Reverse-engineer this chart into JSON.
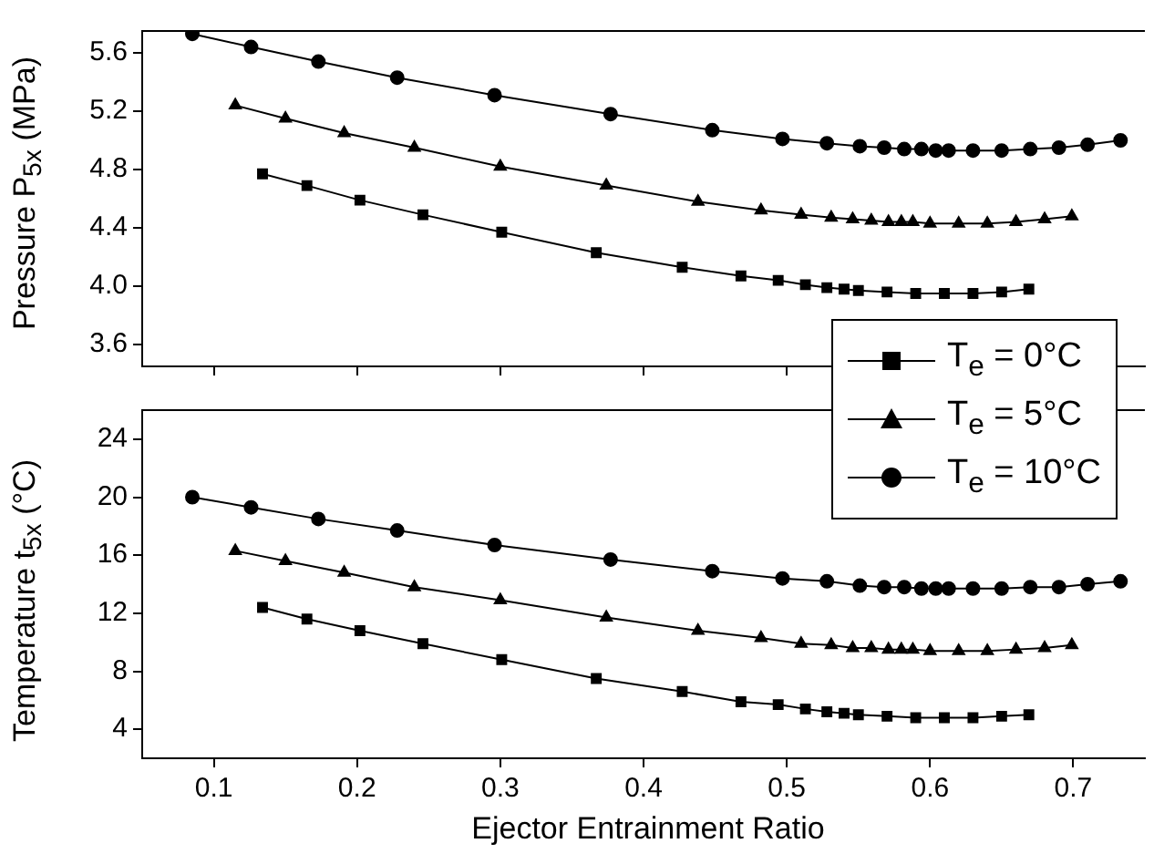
{
  "chart_data": [
    {
      "type": "line",
      "ylabel": "Pressure  P$_{5x}$ (MPa)",
      "xlim": [
        0.05,
        0.75
      ],
      "xticks": [
        0.1,
        0.2,
        0.3,
        0.4,
        0.5,
        0.6,
        0.7
      ],
      "ylim": [
        3.45,
        5.75
      ],
      "yticks": [
        {
          "value": 3.6,
          "label": "3.6"
        },
        {
          "value": 4,
          "label": "4.0"
        },
        {
          "value": 4.4,
          "label": "4.4"
        },
        {
          "value": 4.8,
          "label": "4.8"
        },
        {
          "value": 5.2,
          "label": "5.2"
        },
        {
          "value": 5.6,
          "label": "5.6"
        }
      ],
      "tick_labels": "y",
      "grid": false,
      "series": [
        {
          "color": "#000000",
          "marker": "square",
          "x": [
            0.134,
            0.165,
            0.202,
            0.246,
            0.301,
            0.367,
            0.427,
            0.468,
            0.494,
            0.513,
            0.528,
            0.54,
            0.55,
            0.57,
            0.59,
            0.61,
            0.63,
            0.65,
            0.669
          ],
          "values": [
            4.77,
            4.69,
            4.59,
            4.49,
            4.37,
            4.23,
            4.13,
            4.07,
            4.04,
            4.01,
            3.99,
            3.98,
            3.97,
            3.96,
            3.95,
            3.95,
            3.95,
            3.96,
            3.98
          ]
        },
        {
          "color": "#000000",
          "marker": "triangle",
          "x": [
            0.115,
            0.15,
            0.191,
            0.24,
            0.3,
            0.374,
            0.438,
            0.482,
            0.51,
            0.531,
            0.546,
            0.559,
            0.571,
            0.58,
            0.588,
            0.6,
            0.62,
            0.64,
            0.66,
            0.68,
            0.699
          ],
          "values": [
            5.24,
            5.15,
            5.05,
            4.95,
            4.82,
            4.69,
            4.58,
            4.52,
            4.49,
            4.47,
            4.46,
            4.45,
            4.44,
            4.44,
            4.44,
            4.43,
            4.43,
            4.43,
            4.44,
            4.46,
            4.48
          ]
        },
        {
          "color": "#000000",
          "marker": "circle",
          "x": [
            0.085,
            0.126,
            0.173,
            0.228,
            0.296,
            0.377,
            0.448,
            0.497,
            0.528,
            0.551,
            0.568,
            0.582,
            0.594,
            0.604,
            0.613,
            0.63,
            0.65,
            0.67,
            0.69,
            0.71,
            0.733
          ],
          "values": [
            5.73,
            5.64,
            5.54,
            5.43,
            5.31,
            5.18,
            5.07,
            5.01,
            4.98,
            4.96,
            4.95,
            4.94,
            4.94,
            4.93,
            4.93,
            4.93,
            4.93,
            4.94,
            4.95,
            4.97,
            5.0
          ]
        }
      ]
    },
    {
      "type": "line",
      "xlabel": "Ejector Entrainment Ratio",
      "ylabel": "Temperature t$_{5x}$ (°C)",
      "xlim": [
        0.05,
        0.75
      ],
      "xticks": [
        0.1,
        0.2,
        0.3,
        0.4,
        0.5,
        0.6,
        0.7
      ],
      "ylim": [
        2,
        26
      ],
      "yticks": [
        4,
        8,
        12,
        16,
        20,
        24
      ],
      "grid": false,
      "legend": "top right",
      "series": [
        {
          "name": "T$_{e}$ = 0°C",
          "color": "#000000",
          "marker": "square",
          "x": [
            0.134,
            0.165,
            0.202,
            0.246,
            0.301,
            0.367,
            0.427,
            0.468,
            0.494,
            0.513,
            0.528,
            0.54,
            0.55,
            0.57,
            0.59,
            0.61,
            0.63,
            0.65,
            0.669
          ],
          "values": [
            12.4,
            11.6,
            10.8,
            9.9,
            8.8,
            7.5,
            6.6,
            5.9,
            5.7,
            5.4,
            5.2,
            5.1,
            5.0,
            4.9,
            4.8,
            4.8,
            4.8,
            4.9,
            5.0
          ]
        },
        {
          "name": "T$_{e}$ = 5°C",
          "color": "#000000",
          "marker": "triangle",
          "x": [
            0.115,
            0.15,
            0.191,
            0.24,
            0.3,
            0.374,
            0.438,
            0.482,
            0.51,
            0.531,
            0.546,
            0.559,
            0.571,
            0.58,
            0.588,
            0.6,
            0.62,
            0.64,
            0.66,
            0.68,
            0.699
          ],
          "values": [
            16.3,
            15.6,
            14.8,
            13.8,
            12.9,
            11.7,
            10.8,
            10.3,
            9.9,
            9.8,
            9.6,
            9.6,
            9.5,
            9.5,
            9.5,
            9.4,
            9.4,
            9.4,
            9.5,
            9.6,
            9.8
          ]
        },
        {
          "name": "T$_{e}$ = 10°C",
          "color": "#000000",
          "marker": "circle",
          "x": [
            0.085,
            0.126,
            0.173,
            0.228,
            0.296,
            0.377,
            0.448,
            0.497,
            0.528,
            0.551,
            0.568,
            0.582,
            0.594,
            0.604,
            0.613,
            0.63,
            0.65,
            0.67,
            0.69,
            0.71,
            0.733
          ],
          "values": [
            20.0,
            19.3,
            18.5,
            17.7,
            16.7,
            15.7,
            14.9,
            14.4,
            14.2,
            13.9,
            13.8,
            13.8,
            13.7,
            13.7,
            13.7,
            13.7,
            13.7,
            13.8,
            13.8,
            14.0,
            14.2
          ]
        }
      ]
    }
  ]
}
